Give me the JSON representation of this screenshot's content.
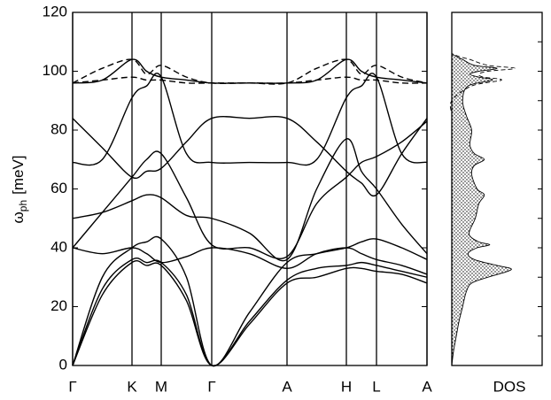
{
  "chart_data": [
    {
      "type": "line",
      "ylabel": {
        "symbol": "ω",
        "subscript": "ph",
        "unit": "[meV]"
      },
      "x": [
        0,
        0.335,
        0.67,
        0.835,
        1.0,
        1.285,
        1.57,
        1.995,
        2.42,
        2.755,
        3.09,
        3.26,
        3.43,
        3.715,
        4.0
      ],
      "xlim": [
        0,
        4
      ],
      "xticks": [
        {
          "value": 0,
          "label": "Γ"
        },
        {
          "value": 0.67,
          "label": "K"
        },
        {
          "value": 1.0,
          "label": "M"
        },
        {
          "value": 1.57,
          "label": "Γ"
        },
        {
          "value": 2.42,
          "label": "A"
        },
        {
          "value": 3.09,
          "label": "H"
        },
        {
          "value": 3.43,
          "label": "L"
        },
        {
          "value": 4.0,
          "label": "A"
        }
      ],
      "ylim": [
        0,
        120
      ],
      "yticks": [
        0,
        20,
        40,
        60,
        80,
        100,
        120
      ],
      "vertical_lines": true,
      "series": [
        {
          "color": "#000000",
          "dashed": false,
          "values": [
            0,
            24,
            35,
            34,
            34,
            22,
            0,
            14,
            28,
            30,
            33,
            33,
            32,
            31,
            28
          ]
        },
        {
          "color": "#000000",
          "dashed": false,
          "values": [
            0,
            26,
            36,
            35,
            35,
            24,
            0,
            15,
            29,
            33,
            34,
            35,
            34,
            32,
            30
          ]
        },
        {
          "color": "#000000",
          "dashed": false,
          "values": [
            0,
            30,
            40,
            42,
            43,
            30,
            0,
            18,
            35,
            38,
            40,
            42,
            43,
            40,
            36
          ]
        },
        {
          "color": "#000000",
          "dashed": false,
          "values": [
            40,
            52,
            64,
            70,
            72,
            57,
            41,
            40,
            37,
            55,
            64,
            69,
            71,
            76,
            83
          ]
        },
        {
          "color": "#000000",
          "dashed": false,
          "values": [
            50,
            52,
            56,
            58,
            57,
            51,
            50,
            45,
            36,
            60,
            77,
            66,
            60,
            48,
            38
          ]
        },
        {
          "color": "#000000",
          "dashed": false,
          "values": [
            40,
            38,
            40,
            38,
            35,
            37,
            40,
            38,
            33,
            38,
            40,
            38,
            36,
            34,
            31
          ]
        },
        {
          "color": "#000000",
          "dashed": false,
          "values": [
            84,
            74,
            64,
            66,
            67,
            76,
            84,
            84,
            84,
            76,
            66,
            62,
            58,
            72,
            84
          ]
        },
        {
          "color": "#000000",
          "dashed": false,
          "values": [
            69,
            70,
            91,
            95,
            98,
            72,
            69,
            69,
            69,
            70,
            91,
            95,
            98,
            72,
            69
          ]
        },
        {
          "color": "#000000",
          "dashed": false,
          "values": [
            96,
            97,
            104,
            100,
            98,
            97,
            96,
            96,
            96,
            97,
            104,
            100,
            98,
            97,
            96
          ]
        },
        {
          "color": "#000000",
          "dashed": true,
          "values": [
            96,
            101,
            104,
            99,
            102,
            98,
            96,
            96,
            96,
            101,
            104,
            99,
            102,
            98,
            96
          ]
        },
        {
          "color": "#000000",
          "dashed": true,
          "values": [
            96,
            97,
            98,
            97,
            97,
            96,
            96,
            96,
            96,
            97,
            98,
            97,
            97,
            96,
            96
          ]
        }
      ]
    },
    {
      "type": "area",
      "xlabel": "DOS",
      "xlim": [
        0,
        1
      ],
      "ylim": [
        0,
        120
      ],
      "yticks": [
        0,
        10,
        20,
        30,
        40,
        50,
        60,
        70,
        80,
        90,
        100,
        110,
        120
      ],
      "y": [
        0,
        5,
        10,
        15,
        20,
        25,
        28,
        30,
        32,
        33,
        34,
        36,
        38,
        40,
        41,
        42,
        44,
        46,
        50,
        55,
        58,
        60,
        65,
        68,
        70,
        72,
        75,
        80,
        85,
        90,
        95,
        97,
        98,
        99,
        100,
        101,
        102,
        104,
        105,
        106
      ],
      "series": [
        {
          "color": "#000000",
          "fill": "dots",
          "values": [
            0,
            0.02,
            0.05,
            0.08,
            0.12,
            0.16,
            0.22,
            0.4,
            0.62,
            0.65,
            0.5,
            0.25,
            0.18,
            0.28,
            0.42,
            0.3,
            0.2,
            0.2,
            0.26,
            0.3,
            0.36,
            0.28,
            0.22,
            0.25,
            0.36,
            0.25,
            0.2,
            0.22,
            0.16,
            0.12,
            0.18,
            0.45,
            0.3,
            0.2,
            0.3,
            0.5,
            0.25,
            0.12,
            0.05,
            0
          ]
        },
        {
          "color": "#000000",
          "dashed": true,
          "values": [
            0,
            0,
            0,
            0,
            0,
            0,
            0,
            0,
            0,
            0,
            0,
            0,
            0,
            0,
            0,
            0,
            0,
            0,
            0,
            0,
            0,
            0,
            0,
            0,
            0,
            0,
            0,
            0,
            0,
            0,
            0.22,
            0.55,
            0.35,
            0.3,
            0.4,
            0.7,
            0.4,
            0.2,
            0.08,
            0
          ]
        }
      ]
    }
  ]
}
